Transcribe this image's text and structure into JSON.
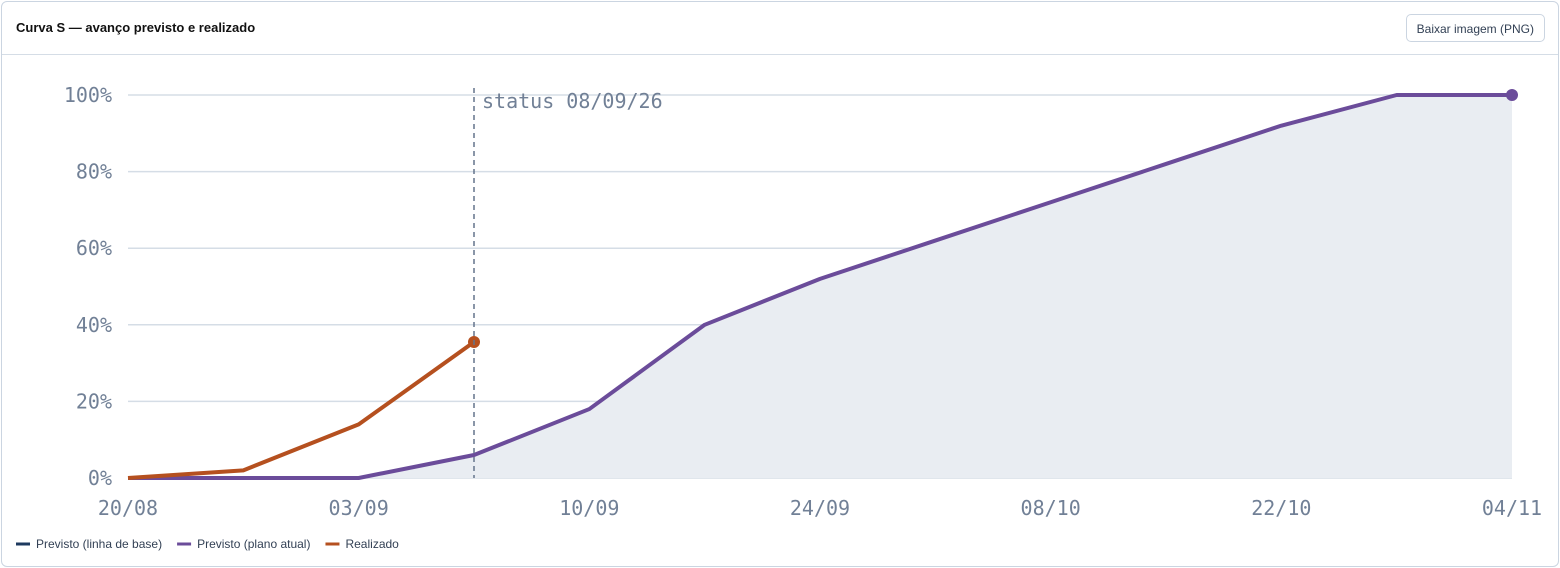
{
  "header": {
    "title": "Curva S — avanço previsto e realizado",
    "button": "Baixar imagem (PNG)"
  },
  "chart_data": {
    "type": "line",
    "categories": [
      "20/08",
      null,
      "03/09",
      null,
      "10/09",
      null,
      "24/09",
      null,
      "08/10",
      null,
      "22/10",
      null,
      "04/11"
    ],
    "series": [
      {
        "name": "Previsto (linha de base)",
        "color": "#1e3a5f",
        "values": [
          null,
          null,
          null,
          null,
          null,
          null,
          null,
          null,
          null,
          null,
          null,
          null,
          null
        ]
      },
      {
        "name": "Previsto (plano atual)",
        "color": "#6b4c9a",
        "area": true,
        "values": [
          0,
          0,
          0,
          6,
          18,
          40,
          52,
          62,
          72,
          82,
          92,
          100,
          100
        ]
      },
      {
        "name": "Realizado",
        "color": "#b5501f",
        "values": [
          0,
          2,
          14,
          35.5,
          null,
          null,
          null,
          null,
          null,
          null,
          null,
          null,
          null
        ]
      }
    ],
    "annotation": "status 08/09/26",
    "ylim": [
      0,
      100
    ],
    "yticks": [
      {
        "value": 0,
        "label": "0%"
      },
      {
        "value": 20,
        "label": "20%"
      },
      {
        "value": 40,
        "label": "40%"
      },
      {
        "value": 60,
        "label": "60%"
      },
      {
        "value": 80,
        "label": "80%"
      },
      {
        "value": 100,
        "label": "100%"
      }
    ],
    "grid": true
  }
}
